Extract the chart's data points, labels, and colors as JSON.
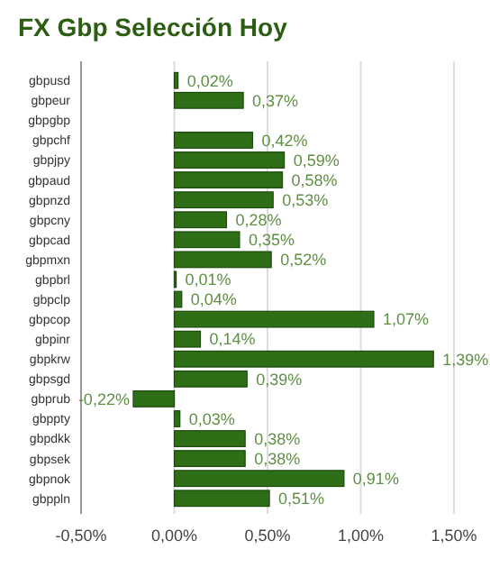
{
  "chart_data": {
    "type": "bar",
    "orientation": "horizontal",
    "title": "FX Gbp Selección Hoy",
    "categories": [
      "gbpusd",
      "gbpeur",
      "gbpgbp",
      "gbpchf",
      "gbpjpy",
      "gbpaud",
      "gbpnzd",
      "gbpcny",
      "gbpcad",
      "gbpmxn",
      "gbpbrl",
      "gbpclp",
      "gbpcop",
      "gbpinr",
      "gbpkrw",
      "gbpsgd",
      "gbprub",
      "gbppty",
      "gbpdkk",
      "gbpsek",
      "gbpnok",
      "gbppln"
    ],
    "values": [
      0.02,
      0.37,
      null,
      0.42,
      0.59,
      0.58,
      0.53,
      0.28,
      0.35,
      0.52,
      0.01,
      0.04,
      1.07,
      0.14,
      1.39,
      0.39,
      -0.22,
      0.03,
      0.38,
      0.38,
      0.91,
      0.51
    ],
    "value_labels": [
      "0,02%",
      "0,37%",
      null,
      "0,42%",
      "0,59%",
      "0,58%",
      "0,53%",
      "0,28%",
      "0,35%",
      "0,52%",
      "0,01%",
      "0,04%",
      "1,07%",
      "0,14%",
      "1,39%",
      "0,39%",
      "-0,22%",
      "0,03%",
      "0,38%",
      "0,38%",
      "0,91%",
      "0,51%"
    ],
    "color": "#2e6e17",
    "xlim": [
      -0.5,
      1.5
    ],
    "xticks": [
      {
        "value": -0.5,
        "label": "-0,50%"
      },
      {
        "value": 0,
        "label": "0,00%"
      },
      {
        "value": 0.5,
        "label": "0,50%"
      },
      {
        "value": 1,
        "label": "1,00%"
      },
      {
        "value": 1.5,
        "label": "1,50%"
      }
    ],
    "grid": "x"
  }
}
